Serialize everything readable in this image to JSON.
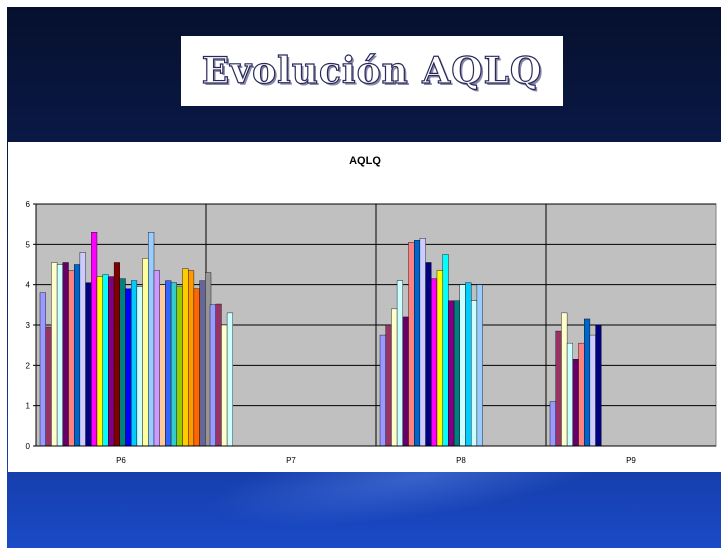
{
  "slide": {
    "title": "Evolución AQLQ"
  },
  "chart_data": {
    "type": "bar",
    "title": "AQLQ",
    "xlabel": "",
    "ylabel": "",
    "ylim": [
      0,
      6
    ],
    "yticks": [
      "0",
      "1",
      "2",
      "3",
      "4",
      "5",
      "6"
    ],
    "grid": true,
    "legend": "none",
    "plot_bg": "#c0c0c0",
    "categories": [
      "P6",
      "P7",
      "P8",
      "P9"
    ],
    "groups": [
      {
        "category": "P6",
        "values": [
          3.8,
          2.95,
          4.55,
          4.5,
          4.55,
          4.35,
          4.5,
          4.8,
          4.05,
          5.3,
          4.2,
          4.25,
          4.2,
          4.55,
          4.15,
          3.9,
          4.1,
          3.95,
          4.65,
          5.3,
          4.35,
          4.0,
          4.1,
          4.05,
          3.95,
          4.4,
          4.35,
          3.9,
          4.1,
          4.3
        ],
        "colors": [
          "#9999ff",
          "#993366",
          "#ffffcc",
          "#ccffff",
          "#660066",
          "#ff8080",
          "#0066cc",
          "#ccccff",
          "#000080",
          "#ff00ff",
          "#ffff00",
          "#00ffff",
          "#800080",
          "#800000",
          "#008080",
          "#0000ff",
          "#00ccff",
          "#ccffff",
          "#ffff99",
          "#99ccff",
          "#cc99ff",
          "#ffcc99",
          "#3366ff",
          "#33cccc",
          "#99cc00",
          "#ffcc00",
          "#ff9900",
          "#ff6600",
          "#666699",
          "#969696"
        ]
      },
      {
        "category": "P7",
        "values": [
          3.5,
          3.52,
          3.0,
          3.3
        ],
        "colors": [
          "#9999ff",
          "#993366",
          "#ffffcc",
          "#ccffff"
        ]
      },
      {
        "category": "P8",
        "values": [
          2.75,
          3.0,
          3.4,
          4.1,
          3.2,
          5.05,
          5.1,
          5.15,
          4.55,
          4.15,
          4.35,
          4.75,
          3.6,
          3.6,
          4.0,
          4.05,
          3.6,
          4.0
        ],
        "colors": [
          "#9999ff",
          "#993366",
          "#ffffcc",
          "#ccffff",
          "#660066",
          "#ff8080",
          "#0066cc",
          "#ccccff",
          "#000080",
          "#ff00ff",
          "#ffff00",
          "#00ffff",
          "#800080",
          "#008080",
          "#ccffff",
          "#00ccff",
          "#ccffff",
          "#99ccff"
        ]
      },
      {
        "category": "P9",
        "values": [
          1.1,
          2.85,
          3.3,
          2.55,
          2.15,
          2.55,
          3.15,
          2.75,
          3.0
        ],
        "colors": [
          "#9999ff",
          "#993366",
          "#ffffcc",
          "#ccffff",
          "#660066",
          "#ff8080",
          "#0066cc",
          "#ccccff",
          "#000080"
        ]
      }
    ]
  }
}
